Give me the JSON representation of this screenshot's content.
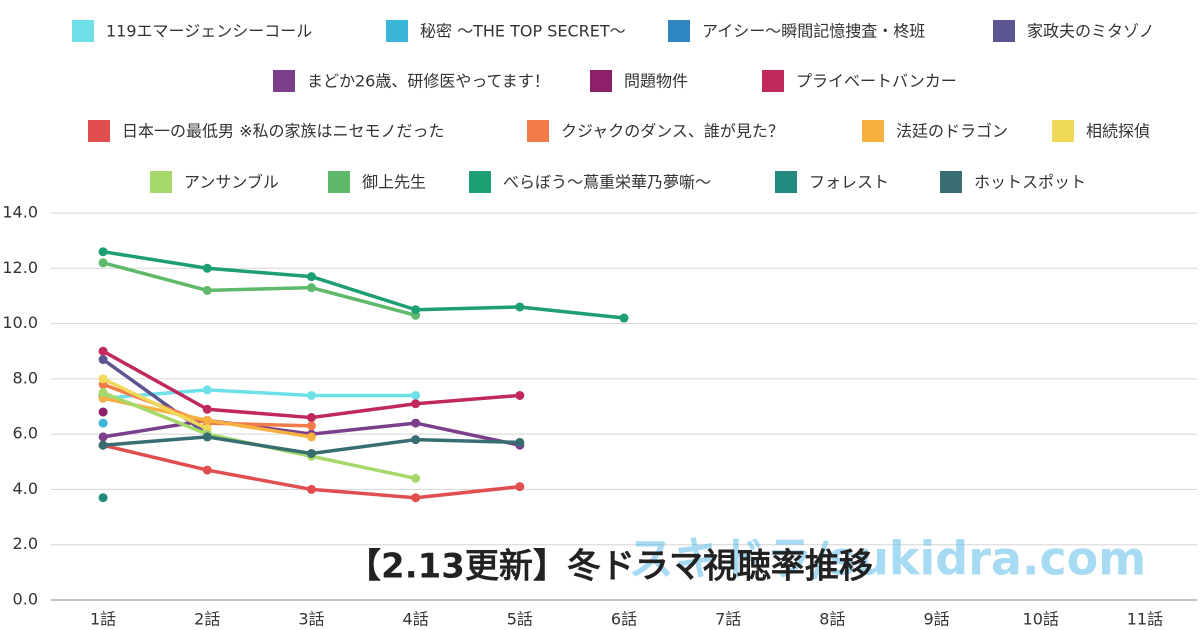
{
  "chart_data": {
    "type": "line",
    "title": "【2.13更新】冬ドラマ視聴率推移",
    "watermark": "スキドラ/sukidra.com",
    "categories": [
      "1話",
      "2話",
      "3話",
      "4話",
      "5話",
      "6話",
      "7話",
      "8話",
      "9話",
      "10話",
      "11話"
    ],
    "ylim": [
      0,
      14
    ],
    "yticks": [
      {
        "value": 0,
        "label": "0.0"
      },
      {
        "value": 2,
        "label": "2.0"
      },
      {
        "value": 4,
        "label": "4.0"
      },
      {
        "value": 6,
        "label": "6.0"
      },
      {
        "value": 8,
        "label": "8.0"
      },
      {
        "value": 10,
        "label": "10.0"
      },
      {
        "value": 12,
        "label": "12.0"
      },
      {
        "value": 14,
        "label": "14.0"
      }
    ],
    "grid": true,
    "legend": "top",
    "series": [
      {
        "name": "119エマージェンシーコール",
        "color": "#6ee1e8",
        "values": [
          7.3,
          7.6,
          7.4,
          7.4,
          null,
          null,
          null,
          null,
          null,
          null,
          null
        ]
      },
      {
        "name": "秘密 〜THE TOP SECRET〜",
        "color": "#3cb6d8",
        "values": [
          6.4,
          null,
          null,
          null,
          null,
          null,
          null,
          null,
          null,
          null,
          null
        ]
      },
      {
        "name": "アイシー〜瞬間記憶捜査・柊班",
        "color": "#2e86c1",
        "values": [
          7.4,
          null,
          null,
          null,
          null,
          null,
          null,
          null,
          null,
          null,
          null
        ]
      },
      {
        "name": "家政夫のミタゾノ",
        "color": "#5b5592",
        "values": [
          8.7,
          6.0,
          null,
          null,
          null,
          null,
          null,
          null,
          null,
          null,
          null
        ]
      },
      {
        "name": "まどか26歳、研修医やってます！",
        "color": "#7b3f8c",
        "values": [
          5.9,
          6.5,
          6.0,
          6.4,
          5.6,
          null,
          null,
          null,
          null,
          null,
          null
        ]
      },
      {
        "name": "問題物件",
        "color": "#8e1f6b",
        "values": [
          6.8,
          null,
          null,
          null,
          null,
          null,
          null,
          null,
          null,
          null,
          null
        ]
      },
      {
        "name": "プライベートバンカー",
        "color": "#c0285e",
        "values": [
          9.0,
          6.9,
          6.6,
          7.1,
          7.4,
          null,
          null,
          null,
          null,
          null,
          null
        ]
      },
      {
        "name": "日本一の最低男 ※私の家族はニセモノだった",
        "color": "#e04e50",
        "values": [
          5.6,
          4.7,
          4.0,
          3.7,
          4.1,
          null,
          null,
          null,
          null,
          null,
          null
        ]
      },
      {
        "name": "クジャクのダンス、誰が見た？",
        "color": "#f27b4a",
        "values": [
          7.8,
          6.4,
          6.3,
          null,
          null,
          null,
          null,
          null,
          null,
          null,
          null
        ]
      },
      {
        "name": "法廷のドラゴン",
        "color": "#f6b040",
        "values": [
          7.3,
          6.5,
          5.9,
          null,
          null,
          null,
          null,
          null,
          null,
          null,
          null
        ]
      },
      {
        "name": "相続探偵",
        "color": "#f0d858",
        "values": [
          8.0,
          6.2,
          null,
          null,
          null,
          null,
          null,
          null,
          null,
          null,
          null
        ]
      },
      {
        "name": "アンサンブル",
        "color": "#a6d86a",
        "values": [
          7.5,
          6.0,
          5.2,
          4.4,
          null,
          null,
          null,
          null,
          null,
          null,
          null
        ]
      },
      {
        "name": "御上先生",
        "color": "#5eb96a",
        "values": [
          12.2,
          11.2,
          11.3,
          10.3,
          null,
          null,
          null,
          null,
          null,
          null,
          null
        ]
      },
      {
        "name": "べらぼう〜蔦重栄華乃夢噺〜",
        "color": "#1e9e73",
        "values": [
          12.6,
          12.0,
          11.7,
          10.5,
          10.6,
          10.2,
          null,
          null,
          null,
          null,
          null
        ]
      },
      {
        "name": "フォレスト",
        "color": "#238a7e",
        "values": [
          3.7,
          null,
          null,
          null,
          null,
          null,
          null,
          null,
          null,
          null,
          null
        ]
      },
      {
        "name": "ホットスポット",
        "color": "#386d72",
        "values": [
          5.6,
          5.9,
          5.3,
          5.8,
          5.7,
          null,
          null,
          null,
          null,
          null,
          null
        ]
      }
    ]
  }
}
